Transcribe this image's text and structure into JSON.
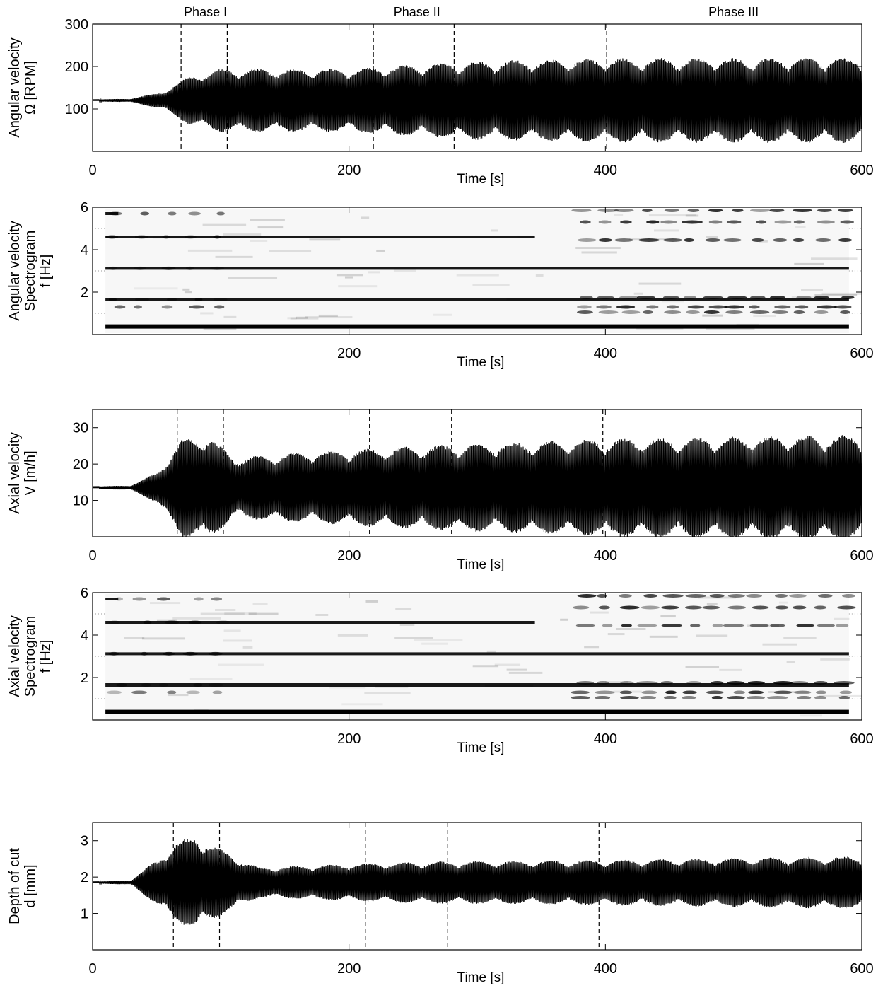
{
  "chart_data": [
    {
      "type": "line",
      "ylabel_lines": [
        "Angular velocity",
        "Ω [RPM]"
      ],
      "xlabel": "Time [s]",
      "xlim": [
        0,
        600
      ],
      "ylim": [
        0,
        300
      ],
      "x_ticks": [
        "0",
        "200",
        "400",
        "600"
      ],
      "y_ticks": [
        "100",
        "200",
        "300"
      ],
      "phase_labels": [
        {
          "label": "Phase I",
          "x": 88
        },
        {
          "label": "Phase II",
          "x": 253
        },
        {
          "label": "Phase III",
          "x": 500
        }
      ],
      "phase_boundaries": [
        69,
        105,
        219,
        282,
        401
      ],
      "series": [
        {
          "baseline": 120,
          "envelope": [
            [
              0,
              2
            ],
            [
              30,
              4
            ],
            [
              55,
              20
            ],
            [
              75,
              55
            ],
            [
              100,
              72
            ],
            [
              200,
              72
            ],
            [
              300,
              90
            ],
            [
              400,
              96
            ],
            [
              600,
              97
            ]
          ]
        }
      ]
    },
    {
      "type": "heatmap",
      "ylabel_lines": [
        "Angular velocity",
        "Spectrogram",
        "f [Hz]"
      ],
      "xlabel": "Time [s]",
      "xlim": [
        0,
        600
      ],
      "ylim": [
        0,
        6
      ],
      "x_ticks": [
        "200",
        "400",
        "600"
      ],
      "y_ticks": [
        "2",
        "4",
        "6"
      ],
      "bands_hz": [
        0.38,
        1.65,
        3.12,
        4.6,
        5.7
      ]
    },
    {
      "type": "line",
      "ylabel_lines": [
        "Axial velocity",
        "V [m/h]"
      ],
      "xlabel": "Time [s]",
      "xlim": [
        0,
        600
      ],
      "ylim": [
        0,
        35
      ],
      "x_ticks": [
        "0",
        "200",
        "400",
        "600"
      ],
      "y_ticks": [
        "10",
        "20",
        "30"
      ],
      "phase_boundaries": [
        66,
        102,
        216,
        280,
        398
      ],
      "series": [
        {
          "baseline": 13.5,
          "envelope": [
            [
              0,
              0.3
            ],
            [
              30,
              0.6
            ],
            [
              50,
              4
            ],
            [
              70,
              13
            ],
            [
              90,
              14
            ],
            [
              110,
              8
            ],
            [
              150,
              9
            ],
            [
              250,
              11
            ],
            [
              400,
              13
            ],
            [
              600,
              14
            ]
          ]
        }
      ]
    },
    {
      "type": "heatmap",
      "ylabel_lines": [
        "Axial velocity",
        "Spectrogram",
        "f [Hz]"
      ],
      "xlabel": "Time [s]",
      "xlim": [
        0,
        600
      ],
      "ylim": [
        0,
        6
      ],
      "x_ticks": [
        "200",
        "400",
        "600"
      ],
      "y_ticks": [
        "2",
        "4",
        "6"
      ],
      "bands_hz": [
        0.38,
        1.65,
        3.12,
        4.6,
        5.7
      ]
    },
    {
      "type": "line",
      "ylabel_lines": [
        "Depth of cut",
        "d [mm]"
      ],
      "xlabel": "Time [s]",
      "xlim": [
        0,
        600
      ],
      "ylim": [
        0,
        3.5
      ],
      "x_ticks": [
        "0",
        "200",
        "400",
        "600"
      ],
      "y_ticks": [
        "1",
        "2",
        "3"
      ],
      "phase_boundaries": [
        63,
        99,
        213,
        277,
        395
      ],
      "series": [
        {
          "baseline": 1.85,
          "envelope": [
            [
              0,
              0.02
            ],
            [
              30,
              0.06
            ],
            [
              50,
              0.6
            ],
            [
              65,
              1.05
            ],
            [
              80,
              1.25
            ],
            [
              110,
              0.7
            ],
            [
              130,
              0.4
            ],
            [
              250,
              0.55
            ],
            [
              400,
              0.6
            ],
            [
              600,
              0.7
            ]
          ]
        }
      ]
    }
  ]
}
